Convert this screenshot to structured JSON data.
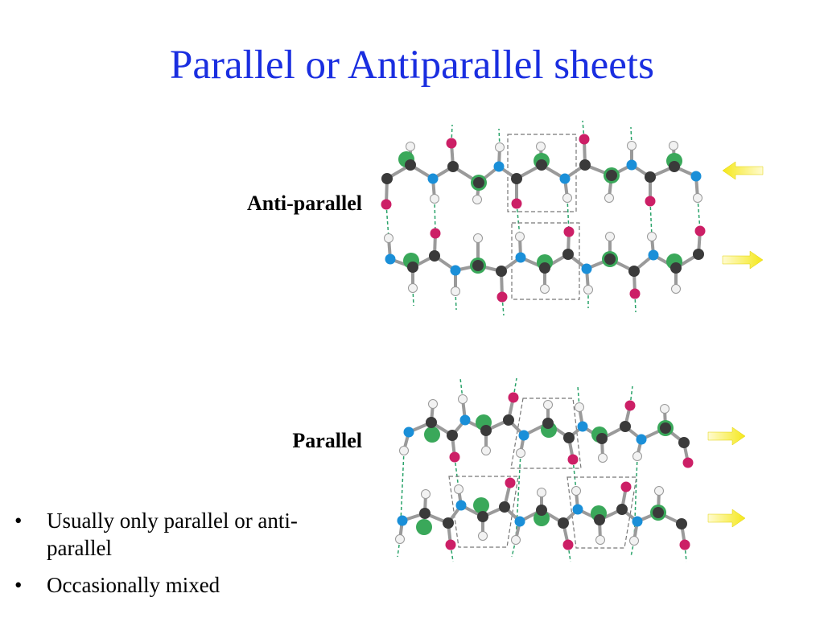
{
  "slide": {
    "title": "Parallel or Antiparallel sheets",
    "labels": {
      "antiparallel": "Anti-parallel",
      "parallel": "Parallel"
    },
    "bullets": [
      "Usually only parallel or anti-parallel",
      "Occasionally mixed"
    ]
  },
  "colors": {
    "title": "#1a2ee0",
    "carbon": "#3a3a3a",
    "nitrogen": "#1a8fd8",
    "oxygen": "#cc1f66",
    "hydrogen": "#f2f2f2",
    "side_chain": "#3aa85a",
    "hbond": "#2aa36a",
    "arrow": "#f5e81a"
  },
  "diagram": {
    "antiparallel_strand_directions": [
      "left",
      "right"
    ],
    "parallel_strand_directions": [
      "right",
      "right"
    ]
  }
}
